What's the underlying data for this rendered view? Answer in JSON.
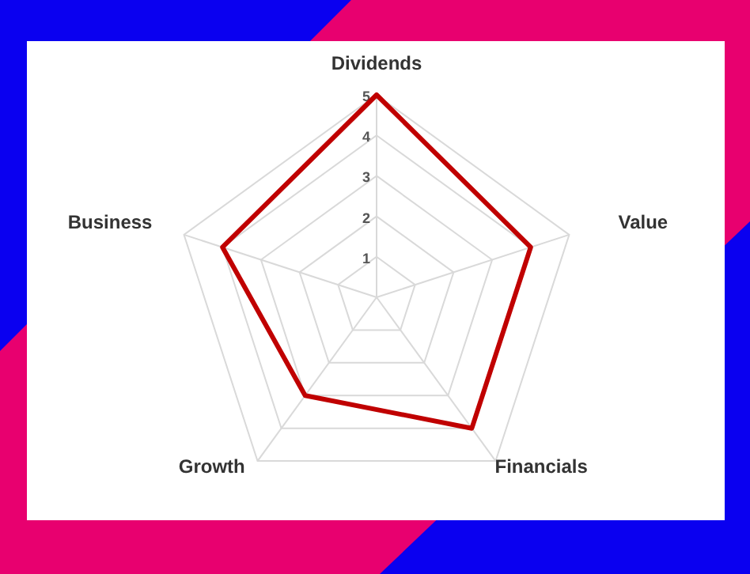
{
  "chart_data": {
    "type": "radar",
    "categories": [
      "Dividends",
      "Value",
      "Financials",
      "Growth",
      "Business"
    ],
    "series": [
      {
        "color": "#c00000",
        "values": [
          5,
          4,
          4,
          3,
          4
        ]
      }
    ],
    "ylim": [
      0,
      5
    ],
    "yticks": [
      1,
      2,
      3,
      4,
      5
    ],
    "grid": true,
    "marker": "none"
  }
}
